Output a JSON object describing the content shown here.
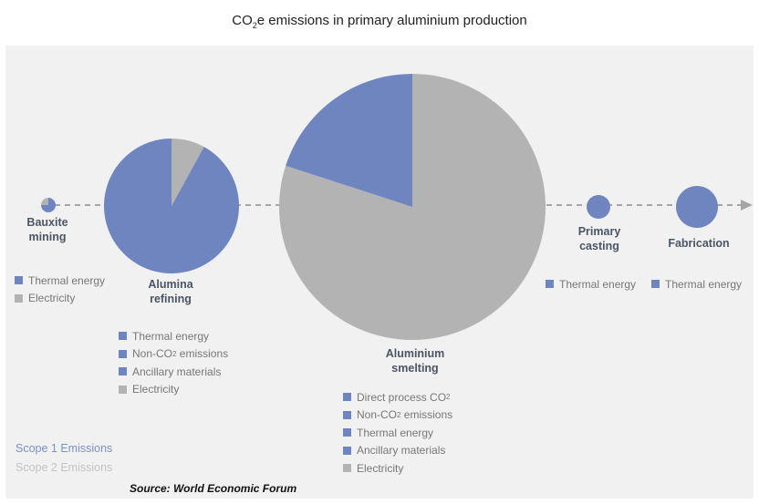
{
  "title": {
    "pre": "CO",
    "sub": "2",
    "post": "e emissions in primary aluminium production"
  },
  "colors": {
    "scope1": "#6f85bf",
    "scope2": "#b3b3b3",
    "arrow": "#a6a6a6",
    "panel": "#f1f1f1"
  },
  "chart_data": {
    "type": "pie",
    "stages": [
      {
        "name": "Bauxite mining",
        "series": [
          {
            "name": "Thermal energy",
            "value": 75,
            "scope": 1
          },
          {
            "name": "Electricity",
            "value": 25,
            "scope": 2
          }
        ]
      },
      {
        "name": "Alumina refining",
        "series": [
          {
            "name": "Electricity",
            "value": 8,
            "scope": 2
          },
          {
            "name": "Scope 1",
            "value": 92,
            "scope": 1
          }
        ]
      },
      {
        "name": "Aluminium smelting",
        "series": [
          {
            "name": "Electricity",
            "value": 80,
            "scope": 2
          },
          {
            "name": "Scope 1",
            "value": 20,
            "scope": 1
          }
        ]
      },
      {
        "name": "Primary casting",
        "series": [
          {
            "name": "Thermal energy",
            "value": 100,
            "scope": 1
          }
        ]
      },
      {
        "name": "Fabrication",
        "series": [
          {
            "name": "Thermal energy",
            "value": 100,
            "scope": 1
          }
        ]
      }
    ]
  },
  "labels": {
    "bauxite": [
      "Bauxite",
      "mining"
    ],
    "alumina": [
      "Alumina",
      "refining"
    ],
    "smelting": [
      "Aluminium",
      "smelting"
    ],
    "casting": [
      "Primary",
      "casting"
    ],
    "fabrication": "Fabrication"
  },
  "legends": {
    "bauxite": [
      {
        "text": "Thermal energy",
        "scope": 1
      },
      {
        "text": "Electricity",
        "scope": 2
      }
    ],
    "alumina": [
      {
        "text": "Thermal energy",
        "scope": 1
      },
      {
        "text": "Non-CO",
        "sub": "2",
        "tail": " emissions",
        "scope": 1
      },
      {
        "text": "Ancillary materials",
        "scope": 1
      },
      {
        "text": "Electricity",
        "scope": 2
      }
    ],
    "smelting": [
      {
        "text": "Direct process CO",
        "sub": "2",
        "tail": "",
        "scope": 1
      },
      {
        "text": "Non-CO",
        "sub": "2",
        "tail": " emissions",
        "scope": 1
      },
      {
        "text": "Thermal energy",
        "scope": 1
      },
      {
        "text": "Ancillary materials",
        "scope": 1
      },
      {
        "text": "Electricity",
        "scope": 2
      }
    ],
    "casting": [
      {
        "text": "Thermal energy",
        "scope": 1
      }
    ],
    "fabrication": [
      {
        "text": "Thermal energy",
        "scope": 1
      }
    ]
  },
  "scopes": {
    "scope1": "Scope 1 Emissions",
    "scope2": "Scope 2 Emissions"
  },
  "source": "Source: World Economic Forum"
}
